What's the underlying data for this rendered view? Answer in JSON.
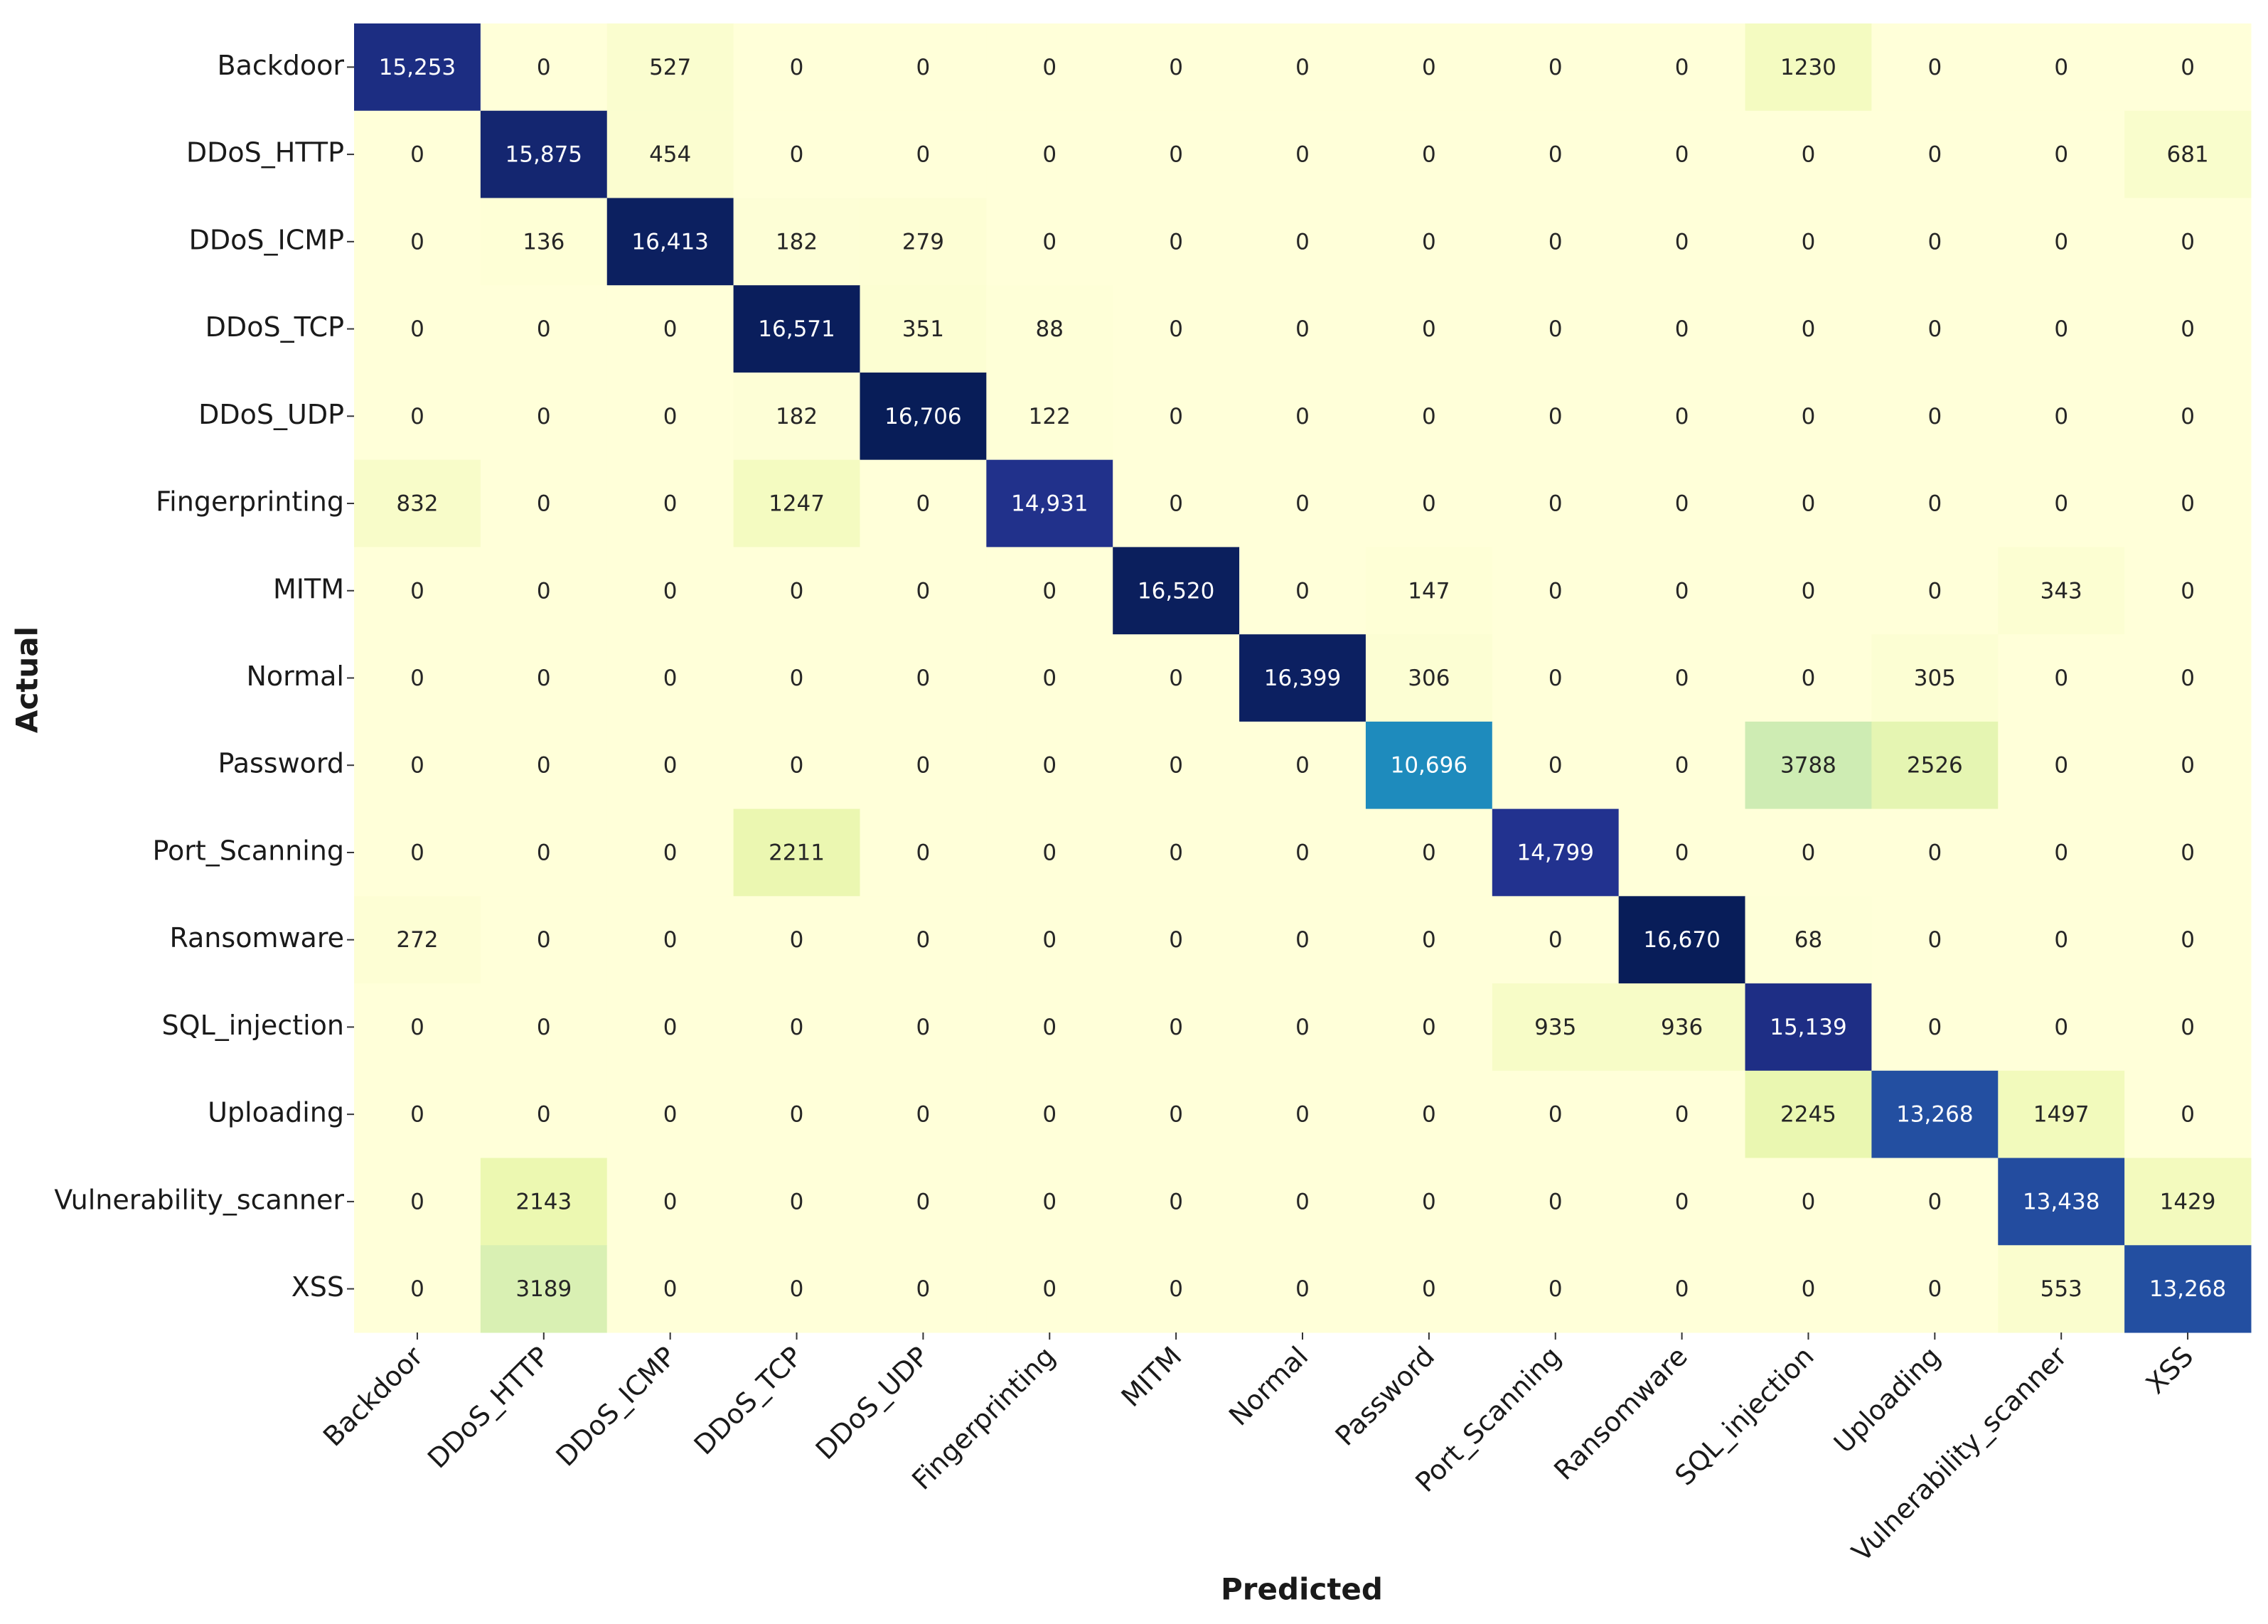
{
  "chart_data": {
    "type": "heatmap",
    "colormap": "YlGnBu",
    "xlabel": "Predicted",
    "ylabel": "Actual",
    "x_categories": [
      "Backdoor",
      "DDoS_HTTP",
      "DDoS_ICMP",
      "DDoS_TCP",
      "DDoS_UDP",
      "Fingerprinting",
      "MITM",
      "Normal",
      "Password",
      "Port_Scanning",
      "Ransomware",
      "SQL_injection",
      "Uploading",
      "Vulnerability_scanner",
      "XSS"
    ],
    "y_categories": [
      "Backdoor",
      "DDoS_HTTP",
      "DDoS_ICMP",
      "DDoS_TCP",
      "DDoS_UDP",
      "Fingerprinting",
      "MITM",
      "Normal",
      "Password",
      "Port_Scanning",
      "Ransomware",
      "SQL_injection",
      "Uploading",
      "Vulnerability_scanner",
      "XSS"
    ],
    "values": [
      [
        15253,
        0,
        527,
        0,
        0,
        0,
        0,
        0,
        0,
        0,
        0,
        1230,
        0,
        0,
        0
      ],
      [
        0,
        15875,
        454,
        0,
        0,
        0,
        0,
        0,
        0,
        0,
        0,
        0,
        0,
        0,
        681
      ],
      [
        0,
        136,
        16413,
        182,
        279,
        0,
        0,
        0,
        0,
        0,
        0,
        0,
        0,
        0,
        0
      ],
      [
        0,
        0,
        0,
        16571,
        351,
        88,
        0,
        0,
        0,
        0,
        0,
        0,
        0,
        0,
        0
      ],
      [
        0,
        0,
        0,
        182,
        16706,
        122,
        0,
        0,
        0,
        0,
        0,
        0,
        0,
        0,
        0
      ],
      [
        832,
        0,
        0,
        1247,
        0,
        14931,
        0,
        0,
        0,
        0,
        0,
        0,
        0,
        0,
        0
      ],
      [
        0,
        0,
        0,
        0,
        0,
        0,
        16520,
        0,
        147,
        0,
        0,
        0,
        0,
        343,
        0
      ],
      [
        0,
        0,
        0,
        0,
        0,
        0,
        0,
        16399,
        306,
        0,
        0,
        0,
        305,
        0,
        0
      ],
      [
        0,
        0,
        0,
        0,
        0,
        0,
        0,
        0,
        10696,
        0,
        0,
        3788,
        2526,
        0,
        0
      ],
      [
        0,
        0,
        0,
        2211,
        0,
        0,
        0,
        0,
        0,
        14799,
        0,
        0,
        0,
        0,
        0
      ],
      [
        272,
        0,
        0,
        0,
        0,
        0,
        0,
        0,
        0,
        0,
        16670,
        68,
        0,
        0,
        0
      ],
      [
        0,
        0,
        0,
        0,
        0,
        0,
        0,
        0,
        0,
        935,
        936,
        15139,
        0,
        0,
        0
      ],
      [
        0,
        0,
        0,
        0,
        0,
        0,
        0,
        0,
        0,
        0,
        0,
        2245,
        13268,
        1497,
        0
      ],
      [
        0,
        2143,
        0,
        0,
        0,
        0,
        0,
        0,
        0,
        0,
        0,
        0,
        0,
        13438,
        1429
      ],
      [
        0,
        3189,
        0,
        0,
        0,
        0,
        0,
        0,
        0,
        0,
        0,
        0,
        0,
        553,
        13268
      ]
    ],
    "value_labels": [
      [
        "15,253",
        "0",
        "527",
        "0",
        "0",
        "0",
        "0",
        "0",
        "0",
        "0",
        "0",
        "1230",
        "0",
        "0",
        "0"
      ],
      [
        "0",
        "15,875",
        "454",
        "0",
        "0",
        "0",
        "0",
        "0",
        "0",
        "0",
        "0",
        "0",
        "0",
        "0",
        "681"
      ],
      [
        "0",
        "136",
        "16,413",
        "182",
        "279",
        "0",
        "0",
        "0",
        "0",
        "0",
        "0",
        "0",
        "0",
        "0",
        "0"
      ],
      [
        "0",
        "0",
        "0",
        "16,571",
        "351",
        "88",
        "0",
        "0",
        "0",
        "0",
        "0",
        "0",
        "0",
        "0",
        "0"
      ],
      [
        "0",
        "0",
        "0",
        "182",
        "16,706",
        "122",
        "0",
        "0",
        "0",
        "0",
        "0",
        "0",
        "0",
        "0",
        "0"
      ],
      [
        "832",
        "0",
        "0",
        "1247",
        "0",
        "14,931",
        "0",
        "0",
        "0",
        "0",
        "0",
        "0",
        "0",
        "0",
        "0"
      ],
      [
        "0",
        "0",
        "0",
        "0",
        "0",
        "0",
        "16,520",
        "0",
        "147",
        "0",
        "0",
        "0",
        "0",
        "343",
        "0"
      ],
      [
        "0",
        "0",
        "0",
        "0",
        "0",
        "0",
        "0",
        "16,399",
        "306",
        "0",
        "0",
        "0",
        "305",
        "0",
        "0"
      ],
      [
        "0",
        "0",
        "0",
        "0",
        "0",
        "0",
        "0",
        "0",
        "10,696",
        "0",
        "0",
        "3788",
        "2526",
        "0",
        "0"
      ],
      [
        "0",
        "0",
        "0",
        "2211",
        "0",
        "0",
        "0",
        "0",
        "0",
        "14,799",
        "0",
        "0",
        "0",
        "0",
        "0"
      ],
      [
        "272",
        "0",
        "0",
        "0",
        "0",
        "0",
        "0",
        "0",
        "0",
        "0",
        "16,670",
        "68",
        "0",
        "0",
        "0"
      ],
      [
        "0",
        "0",
        "0",
        "0",
        "0",
        "0",
        "0",
        "0",
        "0",
        "935",
        "936",
        "15,139",
        "0",
        "0",
        "0"
      ],
      [
        "0",
        "0",
        "0",
        "0",
        "0",
        "0",
        "0",
        "0",
        "0",
        "0",
        "0",
        "2245",
        "13,268",
        "1497",
        "0"
      ],
      [
        "0",
        "2143",
        "0",
        "0",
        "0",
        "0",
        "0",
        "0",
        "0",
        "0",
        "0",
        "0",
        "0",
        "13,438",
        "1429"
      ],
      [
        "0",
        "3189",
        "0",
        "0",
        "0",
        "0",
        "0",
        "0",
        "0",
        "0",
        "0",
        "0",
        "0",
        "553",
        "13,268"
      ]
    ]
  }
}
